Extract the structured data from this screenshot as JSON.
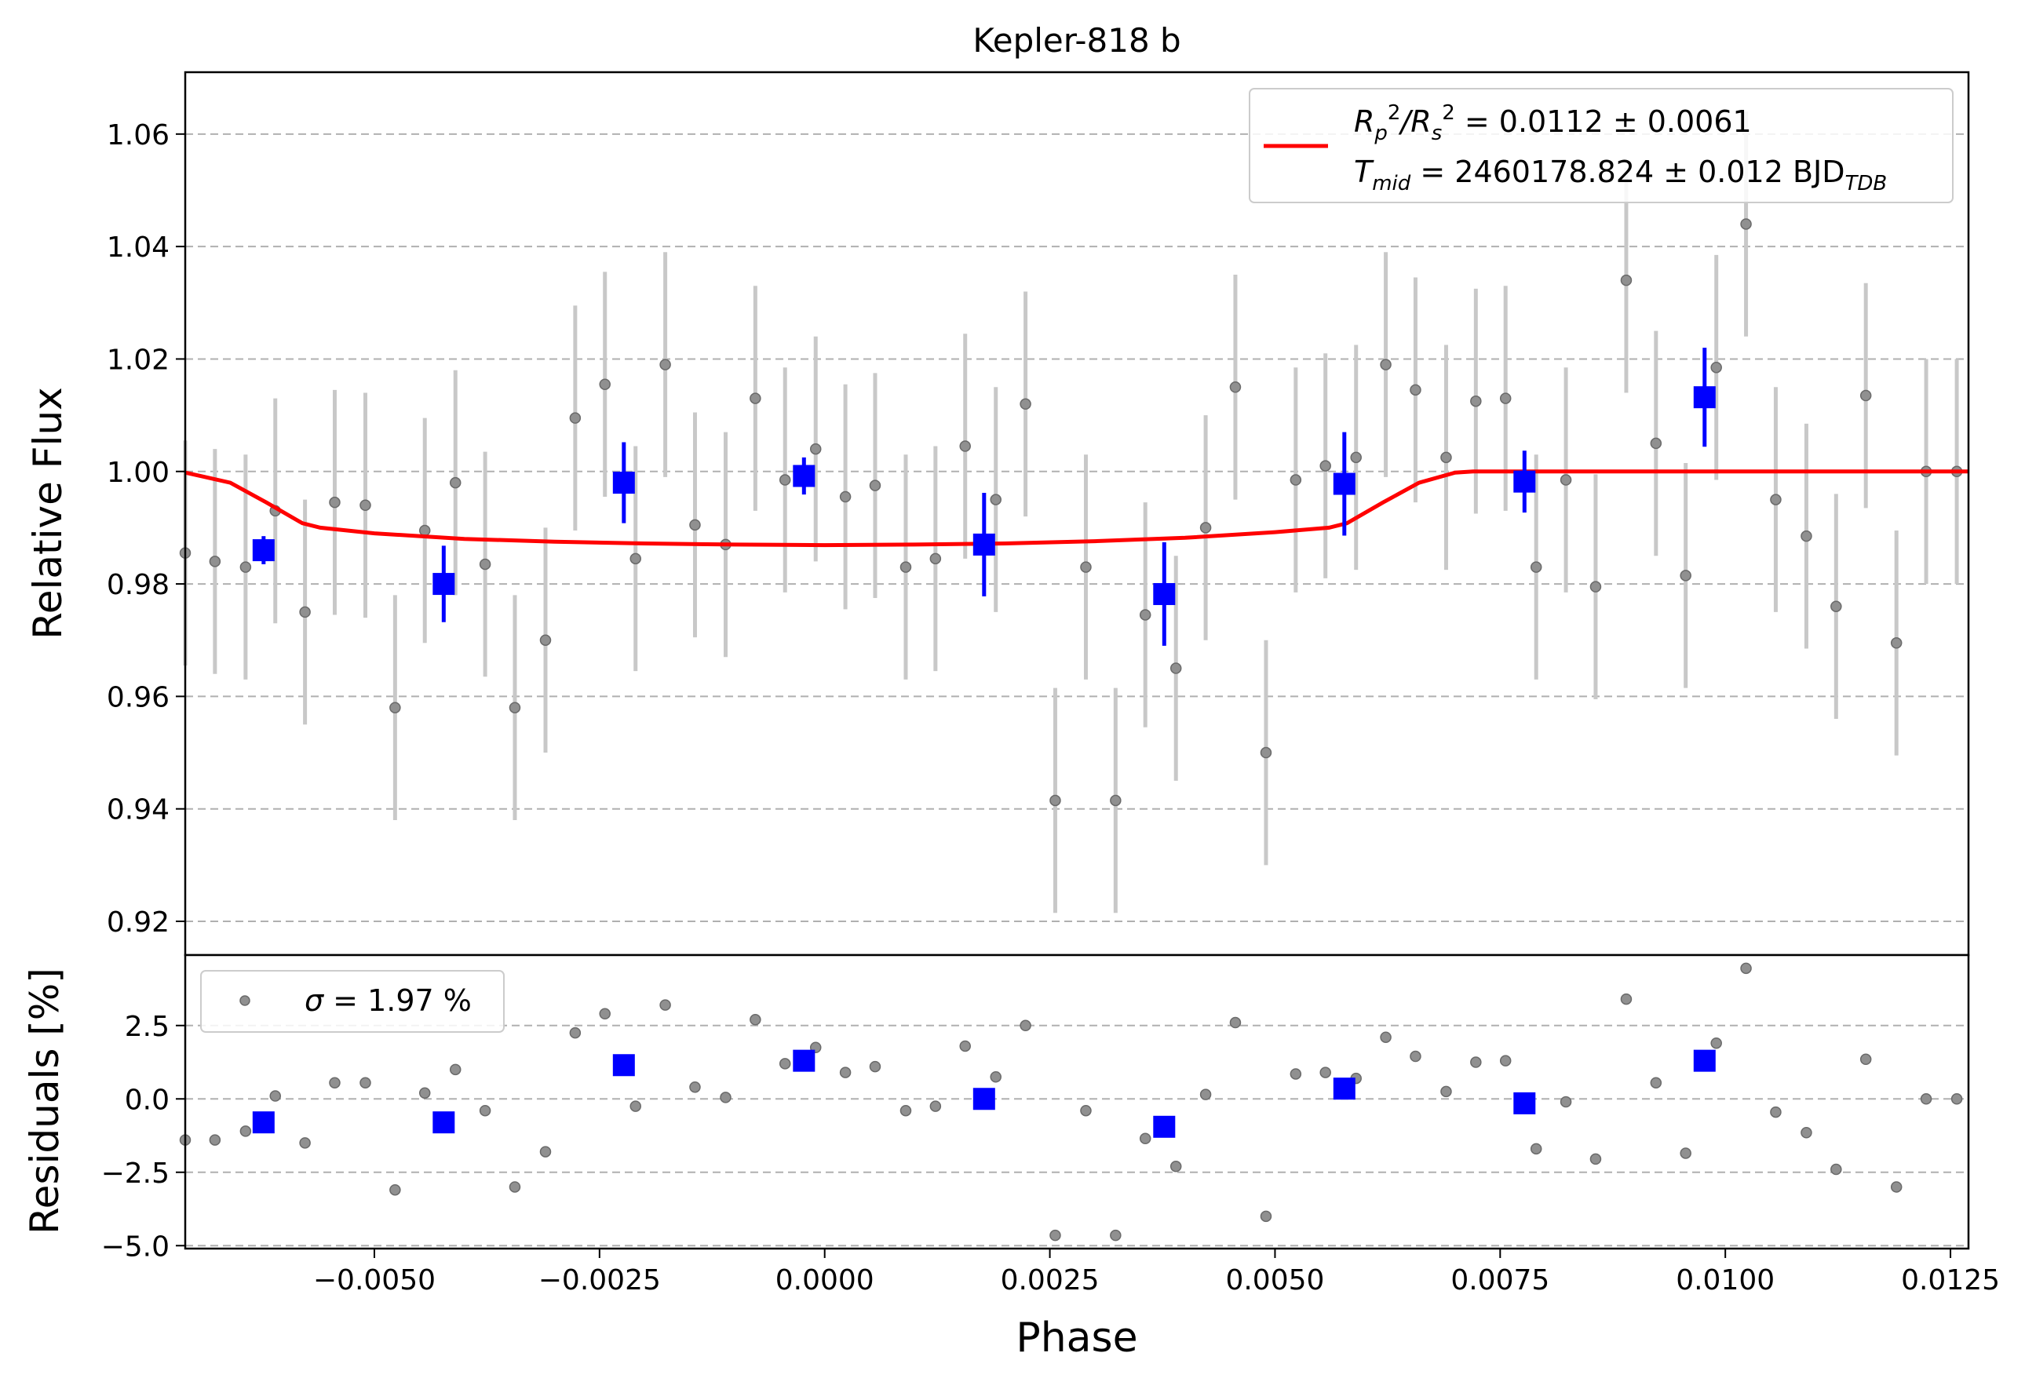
{
  "chart_data": [
    {
      "type": "scatter",
      "title": "Kepler-818 b",
      "xlabel": "",
      "ylabel": "Relative Flux",
      "xlim": [
        -0.0071,
        0.0127
      ],
      "ylim": [
        0.914,
        1.071
      ],
      "yticks": [
        0.92,
        0.94,
        0.96,
        0.98,
        1.0,
        1.02,
        1.04,
        1.06
      ],
      "ytick_labels": [
        "0.92",
        "0.94",
        "0.96",
        "0.98",
        "1.00",
        "1.02",
        "1.04",
        "1.06"
      ],
      "grid": "horizontal dashed",
      "legend": {
        "placement": "top-right",
        "line1_a": "R",
        "line1_b": "p",
        "line1_c": "2",
        "line1_d": "/R",
        "line1_e": "s",
        "line1_f": "2",
        "line1_g": " = 0.0112 ± 0.0061",
        "line2_a": "T",
        "line2_b": "mid",
        "line2_c": " = 2460178.824 ± 0.012 BJD",
        "line2_d": "TDB"
      },
      "colors": {
        "raw": "#808080",
        "rawerr": "#c8c8c8",
        "binned": "#0000ff",
        "model": "#ff0000",
        "grid": "#b0b0b0"
      },
      "series": [
        {
          "role": "raw",
          "x": [
            -0.0071,
            -0.00677,
            -0.00643,
            -0.0061,
            -0.00577,
            -0.00544,
            -0.0051,
            -0.00477,
            -0.00444,
            -0.0041,
            -0.00377,
            -0.00344,
            -0.0031,
            -0.00277,
            -0.00244,
            -0.0021,
            -0.00177,
            -0.00144,
            -0.0011,
            -0.00077,
            -0.00044,
            -0.0001,
            0.00023,
            0.00056,
            0.0009,
            0.00123,
            0.00156,
            0.0019,
            0.00223,
            0.00256,
            0.0029,
            0.00323,
            0.00356,
            0.0039,
            0.00423,
            0.00456,
            0.0049,
            0.00523,
            0.00556,
            0.0059,
            0.00623,
            0.00656,
            0.0069,
            0.00723,
            0.00756,
            0.0079,
            0.00823,
            0.00856,
            0.0089,
            0.00923,
            0.00956,
            0.0099,
            0.01023,
            0.01056,
            0.0109,
            0.01123,
            0.01156,
            0.0119,
            0.01223,
            0.01257
          ],
          "y": [
            0.9855,
            0.984,
            0.983,
            0.993,
            0.975,
            0.9945,
            0.994,
            0.958,
            0.9895,
            0.998,
            0.9835,
            0.958,
            0.97,
            1.0095,
            1.0155,
            0.9845,
            1.019,
            0.9905,
            0.987,
            1.013,
            0.9985,
            1.004,
            0.9955,
            0.9975,
            0.983,
            0.9845,
            1.0045,
            0.995,
            1.012,
            0.9415,
            0.983,
            0.9415,
            0.9745,
            0.965,
            0.99,
            1.015,
            0.95,
            0.9985,
            1.001,
            1.0025,
            1.019,
            1.0145,
            1.0025,
            1.0125,
            1.013,
            0.983,
            0.9985,
            0.9795,
            1.034,
            1.005,
            0.9815,
            1.0185,
            1.044,
            0.995,
            0.9885,
            0.976,
            1.0135,
            0.9695,
            1.0,
            1.0
          ],
          "err": 0.02
        },
        {
          "role": "binned",
          "x": [
            -0.00623,
            -0.00423,
            -0.00223,
            -0.00023,
            0.00177,
            0.00377,
            0.00577,
            0.00777,
            0.00977
          ],
          "y": [
            0.986,
            0.98,
            0.998,
            0.9992,
            0.987,
            0.9782,
            0.9978,
            0.9982,
            1.0132
          ],
          "err": [
            0.0025,
            0.0068,
            0.0072,
            0.0033,
            0.0092,
            0.0092,
            0.0092,
            0.0055,
            0.0088
          ]
        },
        {
          "role": "model",
          "x": [
            -0.0071,
            -0.0066,
            -0.0062,
            -0.0058,
            -0.0056,
            -0.005,
            -0.004,
            -0.003,
            -0.002,
            -0.001,
            0.0,
            0.001,
            0.002,
            0.003,
            0.004,
            0.005,
            0.0056,
            0.0058,
            0.0062,
            0.0066,
            0.007,
            0.0072,
            0.0127
          ],
          "y": [
            0.9998,
            0.998,
            0.9945,
            0.9908,
            0.99,
            0.989,
            0.988,
            0.9875,
            0.9872,
            0.987,
            0.9869,
            0.987,
            0.9872,
            0.9876,
            0.9882,
            0.9892,
            0.99,
            0.9908,
            0.9945,
            0.998,
            0.9998,
            1.0,
            1.0
          ]
        }
      ]
    },
    {
      "type": "scatter",
      "title": "",
      "xlabel": "Phase",
      "ylabel": "Residuals [%]",
      "xlim": [
        -0.0071,
        0.0127
      ],
      "ylim": [
        -5.1,
        4.9
      ],
      "yticks": [
        -5.0,
        -2.5,
        0.0,
        2.5
      ],
      "ytick_labels": [
        "−5.0",
        "−2.5",
        "0.0",
        "2.5"
      ],
      "xticks": [
        -0.005,
        -0.0025,
        0.0,
        0.0025,
        0.005,
        0.0075,
        0.01,
        0.0125
      ],
      "xtick_labels": [
        "−0.0050",
        "−0.0025",
        "0.0000",
        "0.0025",
        "0.0050",
        "0.0075",
        "0.0100",
        "0.0125"
      ],
      "grid": "horizontal dashed",
      "legend": {
        "placement": "top-left",
        "sym": "σ",
        "text": " = 1.97 %"
      },
      "series": [
        {
          "role": "raw",
          "x": [
            -0.0071,
            -0.00677,
            -0.00643,
            -0.0061,
            -0.00577,
            -0.00544,
            -0.0051,
            -0.00477,
            -0.00444,
            -0.0041,
            -0.00377,
            -0.00344,
            -0.0031,
            -0.00277,
            -0.00244,
            -0.0021,
            -0.00177,
            -0.00144,
            -0.0011,
            -0.00077,
            -0.00044,
            -0.0001,
            0.00023,
            0.00056,
            0.0009,
            0.00123,
            0.00156,
            0.0019,
            0.00223,
            0.00256,
            0.0029,
            0.00323,
            0.00356,
            0.0039,
            0.00423,
            0.00456,
            0.0049,
            0.00523,
            0.00556,
            0.0059,
            0.00623,
            0.00656,
            0.0069,
            0.00723,
            0.00756,
            0.0079,
            0.00823,
            0.00856,
            0.0089,
            0.00923,
            0.00956,
            0.0099,
            0.01023,
            0.01056,
            0.0109,
            0.01123,
            0.01156,
            0.0119,
            0.01223,
            0.01257
          ],
          "y": [
            -1.4,
            -1.4,
            -1.1,
            0.1,
            -1.5,
            0.55,
            0.55,
            -3.1,
            0.2,
            1.0,
            -0.4,
            -3.0,
            -1.8,
            2.25,
            2.9,
            -0.25,
            3.2,
            0.4,
            0.05,
            2.7,
            1.2,
            1.75,
            0.9,
            1.1,
            -0.4,
            -0.25,
            1.8,
            0.75,
            2.5,
            -4.65,
            -0.4,
            -4.65,
            -1.35,
            -2.3,
            0.15,
            2.6,
            -4.0,
            0.85,
            0.9,
            0.7,
            2.1,
            1.45,
            0.25,
            1.25,
            1.3,
            -1.7,
            -0.1,
            -2.05,
            3.4,
            0.55,
            -1.85,
            1.9,
            4.45,
            -0.45,
            -1.15,
            -2.4,
            1.35,
            -3.0,
            0.0,
            0.0
          ]
        },
        {
          "role": "binned",
          "x": [
            -0.00623,
            -0.00423,
            -0.00223,
            -0.00023,
            0.00177,
            0.00377,
            0.00577,
            0.00777,
            0.00977
          ],
          "y": [
            -0.8,
            -0.8,
            1.15,
            1.3,
            0.0,
            -0.95,
            0.35,
            -0.15,
            1.3
          ]
        }
      ]
    }
  ]
}
